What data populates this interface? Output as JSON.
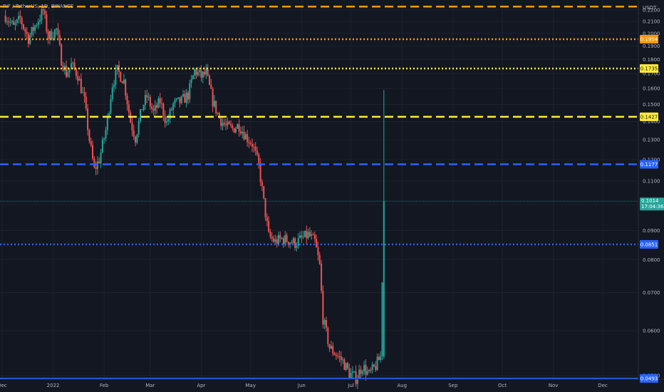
{
  "symbol_title": "RIF / TetherUS, 1D, BINANCE",
  "currency": "USDT",
  "colors": {
    "background": "#131722",
    "grid": "#1e222d",
    "up": "#26a69a",
    "down": "#ef5350",
    "axis_text": "#b2b5be",
    "orange": "#ff9800",
    "yellow": "#ffeb3b",
    "blue": "#2962ff",
    "last_price": "#26a69a"
  },
  "chart_data": {
    "type": "candlestick",
    "y_scale": "log",
    "ylim": [
      0.0493,
      0.229
    ],
    "y_ticks": [
      0.22,
      0.21,
      0.2,
      0.19,
      0.18,
      0.17,
      0.16,
      0.15,
      0.14,
      0.13,
      0.12,
      0.11,
      0.1,
      0.09,
      0.08,
      0.07,
      0.06,
      0.05
    ],
    "y_tick_labels": [
      "0.2200",
      "0.2100",
      "0.2000",
      "0.1900",
      "0.1800",
      "0.1700",
      "0.1600",
      "0.1500",
      "0.1400",
      "0.1300",
      "0.1200",
      "0.1100",
      "0.1000",
      "0.0900",
      "0.0800",
      "0.0700",
      "0.0600",
      "0.0500"
    ],
    "x_labels": [
      {
        "label": "Dec",
        "date": "2021-12-01"
      },
      {
        "label": "2022",
        "date": "2022-01-01"
      },
      {
        "label": "Feb",
        "date": "2022-02-01"
      },
      {
        "label": "Mar",
        "date": "2022-03-01"
      },
      {
        "label": "Apr",
        "date": "2022-04-01"
      },
      {
        "label": "May",
        "date": "2022-05-01"
      },
      {
        "label": "Jun",
        "date": "2022-06-01"
      },
      {
        "label": "Jul",
        "date": "2022-07-01"
      },
      {
        "label": "Aug",
        "date": "2022-08-01"
      },
      {
        "label": "Sep",
        "date": "2022-09-01"
      },
      {
        "label": "Oct",
        "date": "2022-10-01"
      },
      {
        "label": "Nov",
        "date": "2022-11-01"
      },
      {
        "label": "Dec",
        "date": "2022-12-01"
      }
    ],
    "close_path": [
      [
        "2021-12-03",
        0.215
      ],
      [
        "2021-12-08",
        0.205
      ],
      [
        "2021-12-12",
        0.212
      ],
      [
        "2021-12-17",
        0.196
      ],
      [
        "2021-12-22",
        0.209
      ],
      [
        "2021-12-26",
        0.219
      ],
      [
        "2021-12-29",
        0.197
      ],
      [
        "2022-01-03",
        0.203
      ],
      [
        "2022-01-06",
        0.18
      ],
      [
        "2022-01-09",
        0.17
      ],
      [
        "2022-01-12",
        0.176
      ],
      [
        "2022-01-16",
        0.169
      ],
      [
        "2022-01-20",
        0.152
      ],
      [
        "2022-01-23",
        0.13
      ],
      [
        "2022-01-26",
        0.115
      ],
      [
        "2022-01-29",
        0.12
      ],
      [
        "2022-02-02",
        0.135
      ],
      [
        "2022-02-06",
        0.163
      ],
      [
        "2022-02-09",
        0.172
      ],
      [
        "2022-02-13",
        0.165
      ],
      [
        "2022-02-17",
        0.14
      ],
      [
        "2022-02-20",
        0.131
      ],
      [
        "2022-02-24",
        0.148
      ],
      [
        "2022-02-27",
        0.155
      ],
      [
        "2022-03-03",
        0.145
      ],
      [
        "2022-03-07",
        0.152
      ],
      [
        "2022-03-11",
        0.139
      ],
      [
        "2022-03-15",
        0.15
      ],
      [
        "2022-03-20",
        0.152
      ],
      [
        "2022-03-24",
        0.156
      ],
      [
        "2022-03-28",
        0.172
      ],
      [
        "2022-04-01",
        0.168
      ],
      [
        "2022-04-04",
        0.17
      ],
      [
        "2022-04-08",
        0.152
      ],
      [
        "2022-04-12",
        0.142
      ],
      [
        "2022-04-16",
        0.137
      ],
      [
        "2022-04-20",
        0.136
      ],
      [
        "2022-04-24",
        0.138
      ],
      [
        "2022-04-28",
        0.132
      ],
      [
        "2022-05-02",
        0.128
      ],
      [
        "2022-05-06",
        0.117
      ],
      [
        "2022-05-09",
        0.101
      ],
      [
        "2022-05-12",
        0.088
      ],
      [
        "2022-05-16",
        0.086
      ],
      [
        "2022-05-20",
        0.087
      ],
      [
        "2022-05-24",
        0.0865
      ],
      [
        "2022-05-28",
        0.0855
      ],
      [
        "2022-06-01",
        0.087
      ],
      [
        "2022-06-05",
        0.0885
      ],
      [
        "2022-06-09",
        0.086
      ],
      [
        "2022-06-12",
        0.078
      ],
      [
        "2022-06-14",
        0.063
      ],
      [
        "2022-06-18",
        0.056
      ],
      [
        "2022-06-22",
        0.0545
      ],
      [
        "2022-06-26",
        0.053
      ],
      [
        "2022-06-30",
        0.0505
      ],
      [
        "2022-07-04",
        0.0495
      ],
      [
        "2022-07-08",
        0.052
      ],
      [
        "2022-07-12",
        0.0502
      ],
      [
        "2022-07-16",
        0.052
      ],
      [
        "2022-07-19",
        0.054
      ],
      [
        "2022-07-21",
        0.1014
      ]
    ],
    "last_candle": {
      "date": "2022-07-21",
      "open": 0.054,
      "high": 0.159,
      "low": 0.0535,
      "close": 0.1014
    },
    "levels": [
      {
        "price": 0.223,
        "label": "",
        "color": "#ff9800",
        "style": "dashed"
      },
      {
        "price": 0.1954,
        "label": "0.1954",
        "color": "#ff9800",
        "style": "dotted"
      },
      {
        "price": 0.1735,
        "label": "0.1735",
        "color": "#ffeb3b",
        "style": "dotted"
      },
      {
        "price": 0.1427,
        "label": "0.1427",
        "color": "#ffeb3b",
        "style": "dashed"
      },
      {
        "price": 0.1177,
        "label": "0.1177",
        "color": "#2962ff",
        "style": "dashed"
      },
      {
        "price": 0.0851,
        "label": "0.0851",
        "color": "#2962ff",
        "style": "dotted"
      },
      {
        "price": 0.0493,
        "label": "0.0493",
        "color": "#2962ff",
        "style": "solid"
      }
    ],
    "last_price": {
      "price": 0.1014,
      "label": "0.1014",
      "countdown": "17:04:36"
    }
  }
}
